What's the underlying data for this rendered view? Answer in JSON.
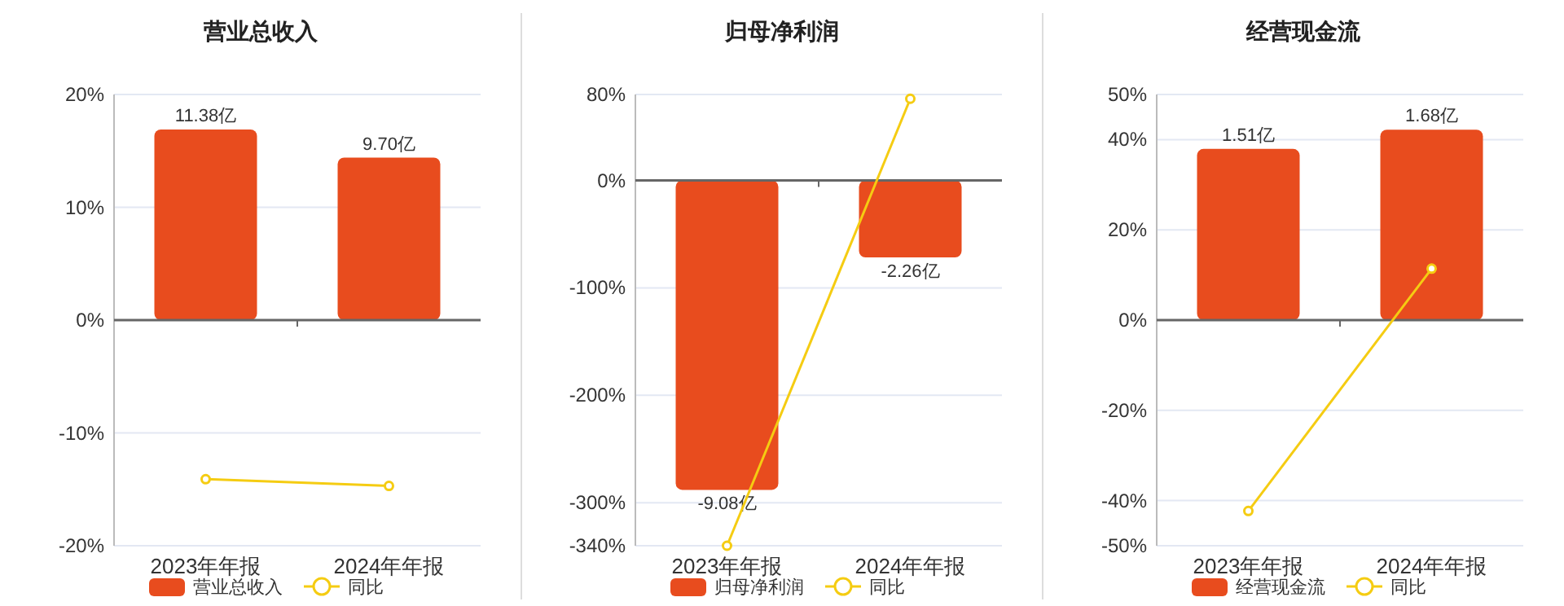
{
  "chart_data": [
    {
      "type": "bar",
      "title": "营业总收入",
      "categories": [
        "2023年年报",
        "2024年年报"
      ],
      "series": [
        {
          "name": "营业总收入",
          "axis": "y2",
          "color": "#e84c1e",
          "values": [
            11.38,
            9.7
          ],
          "value_labels": [
            "11.38亿",
            "9.70亿"
          ]
        },
        {
          "name": "同比",
          "type": "line",
          "axis": "y",
          "color": "#f5cc12",
          "values": [
            -14.1,
            -14.7
          ],
          "marker": "circle"
        }
      ],
      "ylim": [
        -20,
        20
      ],
      "yticks": [
        {
          "value": -20,
          "label": "-20%"
        },
        {
          "value": -10,
          "label": "-10%"
        },
        {
          "value": 0,
          "label": "0%"
        },
        {
          "value": 10,
          "label": "10%"
        },
        {
          "value": 20,
          "label": "20%"
        }
      ],
      "y2lim": [
        -13.47,
        13.47
      ],
      "grid": "y",
      "legend": "bottom"
    },
    {
      "type": "bar",
      "title": "归母净利润",
      "categories": [
        "2023年年报",
        "2024年年报"
      ],
      "series": [
        {
          "name": "归母净利润",
          "axis": "y2",
          "color": "#e84c1e",
          "values": [
            -9.08,
            -2.26
          ],
          "value_labels": [
            "-9.08亿",
            "-2.26亿"
          ]
        },
        {
          "name": "同比",
          "type": "line",
          "axis": "y",
          "color": "#f5cc12",
          "values": [
            -340,
            76
          ],
          "marker": "circle"
        }
      ],
      "ylim": [
        -340,
        80
      ],
      "yticks": [
        {
          "value": -340,
          "label": "-340%"
        },
        {
          "value": -300,
          "label": "-300%"
        },
        {
          "value": -200,
          "label": "-200%"
        },
        {
          "value": -100,
          "label": "-100%"
        },
        {
          "value": 0,
          "label": "0%"
        },
        {
          "value": 80,
          "label": "80%"
        }
      ],
      "y2lim": [
        -10.72,
        2.52
      ],
      "grid": "y",
      "legend": "bottom"
    },
    {
      "type": "bar",
      "title": "经营现金流",
      "categories": [
        "2023年年报",
        "2024年年报"
      ],
      "series": [
        {
          "name": "经营现金流",
          "axis": "y2",
          "color": "#e84c1e",
          "values": [
            1.51,
            1.68
          ],
          "value_labels": [
            "1.51亿",
            "1.68亿"
          ]
        },
        {
          "name": "同比",
          "type": "line",
          "axis": "y",
          "color": "#f5cc12",
          "values": [
            -42.3,
            11.4
          ],
          "marker": "circle"
        }
      ],
      "ylim": [
        -50,
        50
      ],
      "yticks": [
        {
          "value": -50,
          "label": "-50%"
        },
        {
          "value": -40,
          "label": "-40%"
        },
        {
          "value": -20,
          "label": "-20%"
        },
        {
          "value": 0,
          "label": "0%"
        },
        {
          "value": 20,
          "label": "20%"
        },
        {
          "value": 40,
          "label": "40%"
        },
        {
          "value": 50,
          "label": "50%"
        }
      ],
      "y2lim": [
        -1.99,
        1.99
      ],
      "grid": "y",
      "legend": "bottom"
    }
  ]
}
